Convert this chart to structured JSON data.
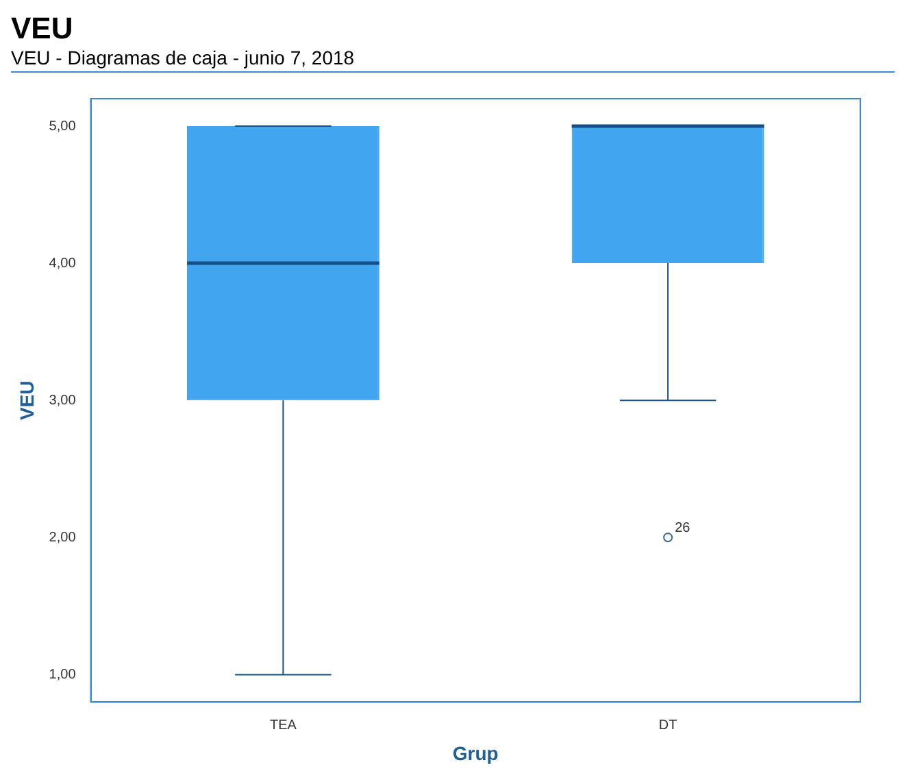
{
  "chart_data": {
    "type": "box",
    "title": "VEU",
    "subtitle": "VEU - Diagramas de caja - junio 7, 2018",
    "xlabel": "Grup",
    "ylabel": "VEU",
    "categories": [
      "TEA",
      "DT"
    ],
    "color": "#42a5ef",
    "boxes": [
      {
        "low": 1,
        "q1": 3,
        "median": 4,
        "q3": 5,
        "high": 5
      },
      {
        "low": 3,
        "q1": 4,
        "median": 5,
        "q3": 5,
        "high": 5,
        "outliers": [
          2
        ]
      }
    ],
    "ylim": [
      0.8,
      5.2
    ],
    "yticks": [
      {
        "value": 1,
        "label": "1,00"
      },
      {
        "value": 2,
        "label": "2,00"
      },
      {
        "value": 3,
        "label": "3,00"
      },
      {
        "value": 4,
        "label": "4,00"
      },
      {
        "value": 5,
        "label": "5,00"
      }
    ],
    "grid": false,
    "legend": false,
    "annotations": [
      "26"
    ]
  }
}
